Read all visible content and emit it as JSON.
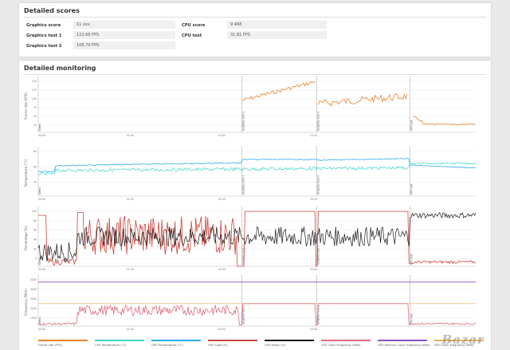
{
  "scores": {
    "title": "Detailed scores",
    "rows": [
      {
        "label": "Graphics score",
        "value": "11 xxx",
        "label2": "CPU score",
        "value2": "9 468"
      },
      {
        "label": "Graphics test 1",
        "value": "122.66 FPS",
        "label2": "CPU test",
        "value2": "31.81 FPS"
      },
      {
        "label": "Graphics test 2",
        "value": "106.70 FPS"
      }
    ]
  },
  "monitoring": {
    "title": "Detailed monitoring",
    "time_ticks": [
      "00:00",
      "01:00",
      "02:00",
      "03:00"
    ],
    "markers": [
      "Demo",
      "Graphics test 1",
      "Graphics test 2",
      "CPU test"
    ],
    "panels": [
      {
        "ylabel": "Frame rate (FPS)",
        "yticks": [
          "150",
          "125",
          "100",
          "75",
          "50",
          "25"
        ]
      },
      {
        "ylabel": "Temperature (°C)",
        "yticks": [
          "80",
          "60",
          "40"
        ]
      },
      {
        "ylabel": "Percentage (%)",
        "yticks": [
          "100",
          "80",
          "60",
          "40",
          "20",
          "0"
        ]
      },
      {
        "ylabel": "Frequency (MHz)",
        "yticks": [
          "5000",
          "4000",
          "3000",
          "2000",
          "1000"
        ]
      }
    ],
    "legend": [
      {
        "label": "Frame rate (FPS)",
        "color": "#e8822a"
      },
      {
        "label": "CPU Temperature (°C)",
        "color": "#3bd6c6"
      },
      {
        "label": "GPU Temperature (°C)",
        "color": "#2aa9e8"
      },
      {
        "label": "GPU Load (%)",
        "color": "#c9463f"
      },
      {
        "label": "CPU Utility (%)",
        "color": "#1a1a1a"
      },
      {
        "label": "CPU Clock Frequency (MHz)",
        "color": "#e06a7c"
      },
      {
        "label": "GPU Memory Clock Frequency (MHz)",
        "color": "#8a4fc4"
      },
      {
        "label": "GPU Clock Frequency (MHz)",
        "color": "#f0b15a"
      }
    ]
  },
  "watermark": "Bazar"
}
